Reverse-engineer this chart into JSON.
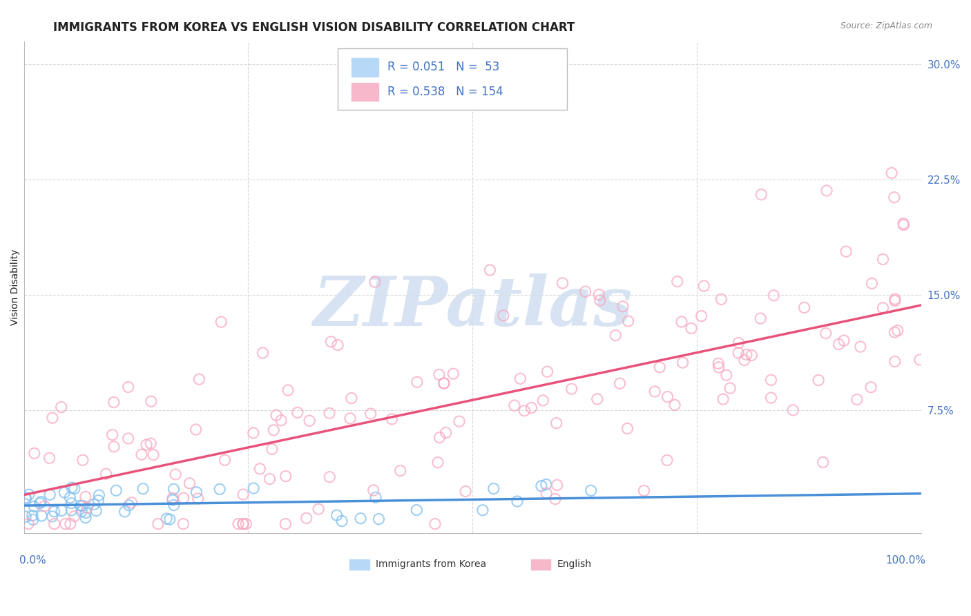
{
  "title": "IMMIGRANTS FROM KOREA VS ENGLISH VISION DISABILITY CORRELATION CHART",
  "source": "Source: ZipAtlas.com",
  "ylabel": "Vision Disability",
  "y_tick_positions": [
    0.075,
    0.15,
    0.225,
    0.3
  ],
  "y_tick_labels": [
    "7.5%",
    "15.0%",
    "22.5%",
    "30.0%"
  ],
  "x_range": [
    0.0,
    1.0
  ],
  "y_range": [
    -0.005,
    0.315
  ],
  "blue_R": 0.051,
  "blue_N": 53,
  "pink_R": 0.538,
  "pink_N": 154,
  "blue_scatter_color": "#7fbfef",
  "pink_scatter_color": "#f7a8c0",
  "blue_line_color": "#4a90d9",
  "pink_line_color": "#e8527a",
  "watermark_text": "ZIPatlas",
  "watermark_color": "#d0dff0",
  "background_color": "#ffffff",
  "grid_color": "#d8d8d8",
  "title_color": "#222222",
  "source_color": "#888888",
  "axis_label_color": "#222222",
  "tick_label_color": "#4472c4",
  "legend_label_color": "#4472c4",
  "bottom_legend_color": "#333333",
  "title_fontsize": 12,
  "source_fontsize": 9,
  "axis_label_fontsize": 10,
  "tick_fontsize": 11,
  "legend_fontsize": 12
}
